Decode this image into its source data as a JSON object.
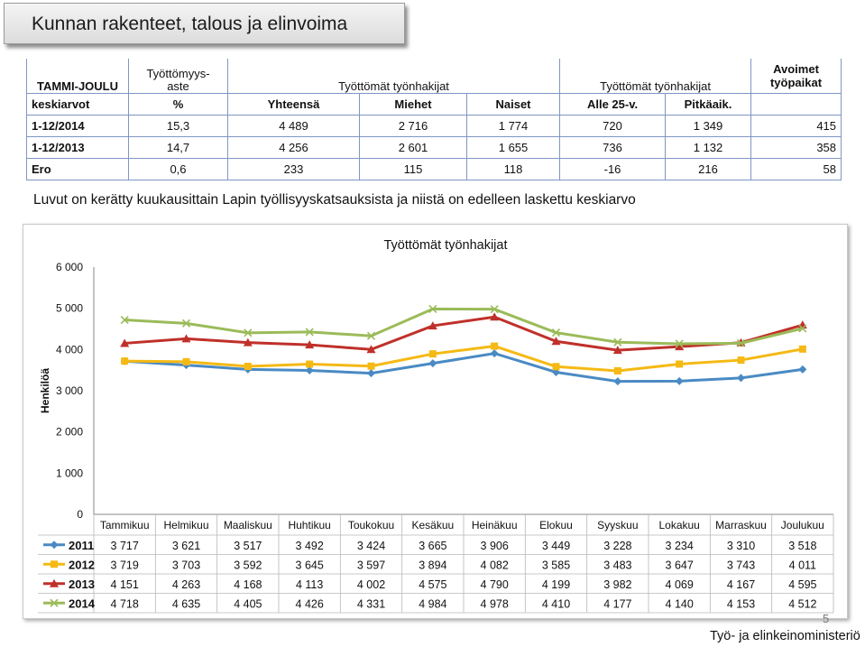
{
  "slide": {
    "title": "Kunnan rakenteet, talous ja elinvoima",
    "note": "Luvut on kerätty kuukausittain Lapin työllisyyskatsauksista ja niistä on edelleen laskettu keskiarvo",
    "page_number": "5",
    "footer": "Työ- ja elinkeinoministeriö"
  },
  "table": {
    "header_top": [
      "TAMMI-JOULU",
      "Työttömyys-\naste",
      "Työttömät työnhakijat",
      "Työttömät työnhakijat",
      "Avoimet\ntyöpaikat"
    ],
    "header_sub": [
      "keskiarvot",
      "%",
      "Yhteensä",
      "Miehet",
      "Naiset",
      "Alle 25-v.",
      "Pitkäaik.",
      ""
    ],
    "rows": [
      {
        "label": "1-12/2014",
        "cells": [
          "15,3",
          "4 489",
          "2 716",
          "1 774",
          "720",
          "1 349",
          "415"
        ]
      },
      {
        "label": "1-12/2013",
        "cells": [
          "14,7",
          "4 256",
          "2 601",
          "1 655",
          "736",
          "1 132",
          "358"
        ]
      },
      {
        "label": "Ero",
        "cells": [
          "0,6",
          "233",
          "115",
          "118",
          "-16",
          "216",
          "58"
        ]
      }
    ]
  },
  "chart_data": {
    "type": "line",
    "title": "Työttömät työnhakijat",
    "ylabel": "Henkilöä",
    "xlabel": "",
    "ylim": [
      0,
      6000
    ],
    "yticks": [
      0,
      1000,
      2000,
      3000,
      4000,
      5000,
      6000
    ],
    "ytick_labels": [
      "0",
      "1 000",
      "2 000",
      "3 000",
      "4 000",
      "5 000",
      "6 000"
    ],
    "categories": [
      "Tammikuu",
      "Helmikuu",
      "Maaliskuu",
      "Huhtikuu",
      "Toukokuu",
      "Kesäkuu",
      "Heinäkuu",
      "Elokuu",
      "Syyskuu",
      "Lokakuu",
      "Marraskuu",
      "Joulukuu"
    ],
    "legend_placement": "data-table-below",
    "series": [
      {
        "name": "2011",
        "color": "#4a8ac4",
        "marker": "diamond",
        "values": [
          3717,
          3621,
          3517,
          3492,
          3424,
          3665,
          3906,
          3449,
          3228,
          3234,
          3310,
          3518
        ],
        "labels": [
          "3 717",
          "3 621",
          "3 517",
          "3 492",
          "3 424",
          "3 665",
          "3 906",
          "3 449",
          "3 228",
          "3 234",
          "3 310",
          "3 518"
        ]
      },
      {
        "name": "2012",
        "color": "#f5b914",
        "marker": "square",
        "values": [
          3719,
          3703,
          3592,
          3645,
          3597,
          3894,
          4082,
          3585,
          3483,
          3647,
          3743,
          4011
        ],
        "labels": [
          "3 719",
          "3 703",
          "3 592",
          "3 645",
          "3 597",
          "3 894",
          "4 082",
          "3 585",
          "3 483",
          "3 647",
          "3 743",
          "4 011"
        ]
      },
      {
        "name": "2013",
        "color": "#c0302a",
        "marker": "triangle",
        "values": [
          4151,
          4263,
          4168,
          4113,
          4002,
          4575,
          4790,
          4199,
          3982,
          4069,
          4167,
          4595
        ],
        "labels": [
          "4 151",
          "4 263",
          "4 168",
          "4 113",
          "4 002",
          "4 575",
          "4 790",
          "4 199",
          "3 982",
          "4 069",
          "4 167",
          "4 595"
        ]
      },
      {
        "name": "2014",
        "color": "#9bbb59",
        "marker": "x",
        "values": [
          4718,
          4635,
          4405,
          4426,
          4331,
          4984,
          4978,
          4410,
          4177,
          4140,
          4153,
          4512
        ],
        "labels": [
          "4 718",
          "4 635",
          "4 405",
          "4 426",
          "4 331",
          "4 984",
          "4 978",
          "4 410",
          "4 177",
          "4 140",
          "4 153",
          "4 512"
        ]
      }
    ]
  }
}
